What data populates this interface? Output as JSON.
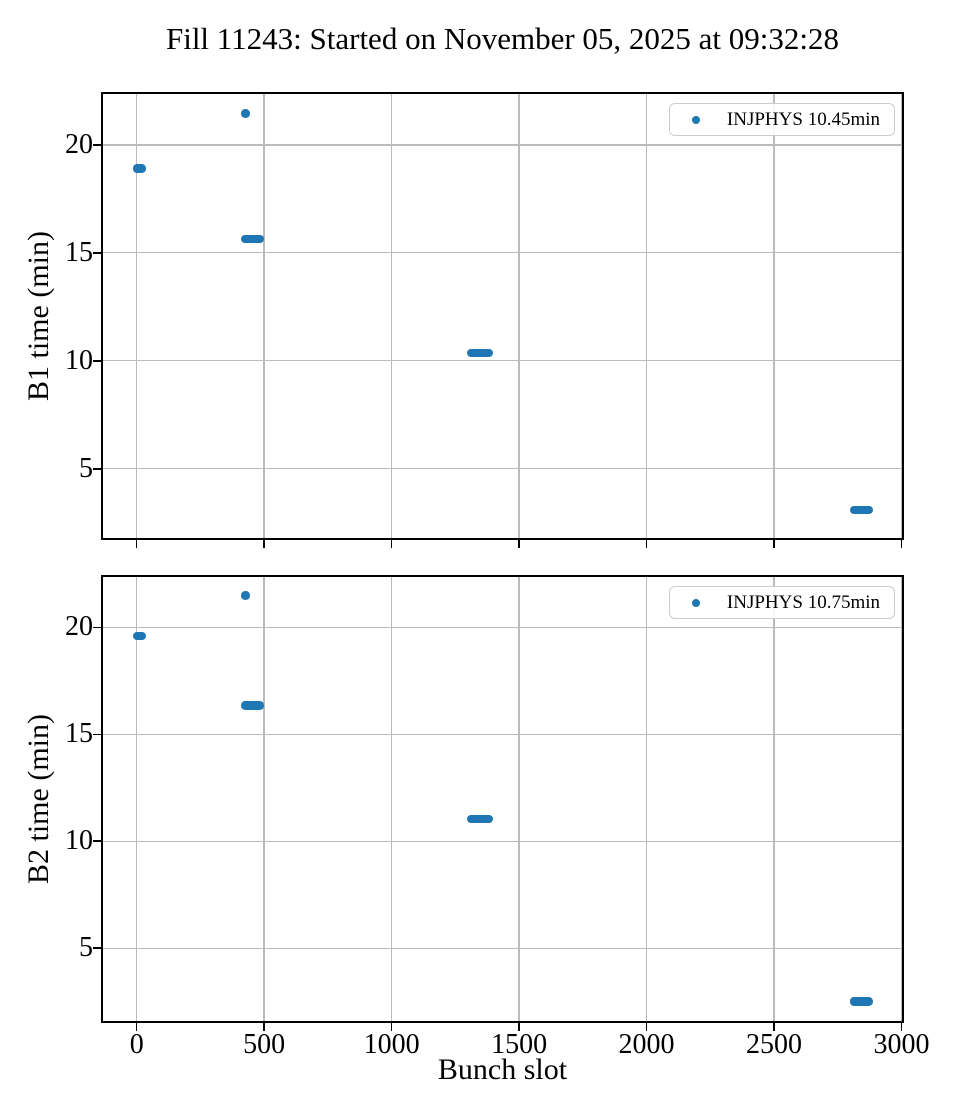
{
  "title": "Fill 11243: Started on November 05, 2025 at 09:32:28",
  "colors": {
    "marker": "#1f77b4",
    "grid": "#bbbbbb",
    "axes_frame": "#000000",
    "legend_border": "#cccccc"
  },
  "chart_data": [
    {
      "type": "scatter",
      "ylabel": "B1 time (min)",
      "xlabel": "",
      "xlim": [
        -140,
        3010
      ],
      "ylim": [
        1.7,
        22.45
      ],
      "xticks": [
        0,
        500,
        1000,
        1500,
        2000,
        2500,
        3000
      ],
      "yticks": [
        5,
        10,
        15,
        20
      ],
      "grid": true,
      "show_xtick_labels": false,
      "legend_label": "INJPHYS 10.45min",
      "legend_position": "upper right",
      "series": [
        {
          "name": "INJPHYS 10.45min",
          "color": "#1f77b4",
          "clusters": [
            {
              "x_start": 2,
              "x_end": 18,
              "points": 5,
              "y": 18.9
            },
            {
              "x_start": 427,
              "x_end": 427,
              "points": 1,
              "y": 21.45
            },
            {
              "x_start": 427,
              "x_end": 481,
              "points": 14,
              "y": 15.65
            },
            {
              "x_start": 1313,
              "x_end": 1381,
              "points": 18,
              "y": 10.35
            },
            {
              "x_start": 2813,
              "x_end": 2871,
              "points": 15,
              "y": 3.1
            }
          ]
        }
      ]
    },
    {
      "type": "scatter",
      "ylabel": "B2 time (min)",
      "xlabel": "Bunch slot",
      "xlim": [
        -140,
        3010
      ],
      "ylim": [
        1.5,
        22.45
      ],
      "xticks": [
        0,
        500,
        1000,
        1500,
        2000,
        2500,
        3000
      ],
      "yticks": [
        5,
        10,
        15,
        20
      ],
      "grid": true,
      "show_xtick_labels": true,
      "legend_label": "INJPHYS 10.75min",
      "legend_position": "upper right",
      "series": [
        {
          "name": "INJPHYS 10.75min",
          "color": "#1f77b4",
          "clusters": [
            {
              "x_start": 2,
              "x_end": 18,
              "points": 5,
              "y": 19.6
            },
            {
              "x_start": 427,
              "x_end": 427,
              "points": 1,
              "y": 21.5
            },
            {
              "x_start": 427,
              "x_end": 481,
              "points": 14,
              "y": 16.35
            },
            {
              "x_start": 1313,
              "x_end": 1381,
              "points": 18,
              "y": 11.05
            },
            {
              "x_start": 2813,
              "x_end": 2871,
              "points": 15,
              "y": 2.5
            }
          ]
        }
      ]
    }
  ]
}
